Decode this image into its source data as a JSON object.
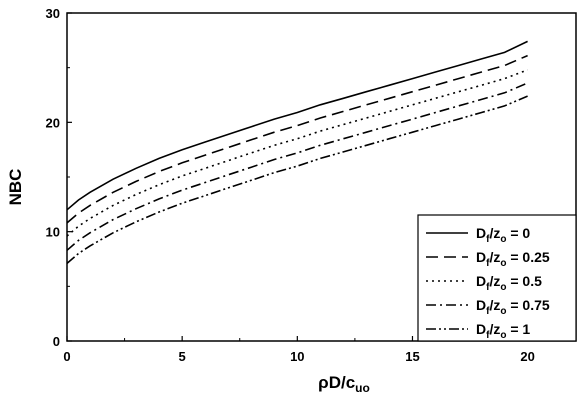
{
  "chart_data": {
    "type": "line",
    "xlabel": "ρD/c",
    "xlabel_sub": "uo",
    "ylabel": "NBC",
    "xlim": [
      0,
      22.1
    ],
    "ylim": [
      0,
      30
    ],
    "xticks": [
      0,
      5,
      10,
      15,
      20
    ],
    "yticks": [
      0,
      10,
      20,
      30
    ],
    "xtick_labels": [
      "0",
      "5",
      "10",
      "15",
      "20"
    ],
    "ytick_labels": [
      "0",
      "10",
      "20",
      "30"
    ],
    "legend_position": "bottom-right",
    "series": [
      {
        "name": "Df/zo = 0",
        "legend": {
          "main": "D",
          "sub1": "f",
          "mid": "/z",
          "sub2": "o",
          "tail": " = 0"
        },
        "dash": "",
        "x": [
          0,
          0.5,
          1,
          2,
          3,
          4,
          5,
          6,
          7,
          8,
          9,
          10,
          11,
          12,
          13,
          14,
          15,
          16,
          17,
          18,
          19,
          20
        ],
        "y": [
          12.0,
          12.9,
          13.6,
          14.8,
          15.8,
          16.7,
          17.5,
          18.2,
          18.9,
          19.6,
          20.3,
          20.9,
          21.6,
          22.2,
          22.8,
          23.4,
          24.0,
          24.6,
          25.2,
          25.8,
          26.4,
          27.4
        ]
      },
      {
        "name": "Df/zo = 0.25",
        "legend": {
          "main": "D",
          "sub1": "f",
          "mid": "/z",
          "sub2": "o",
          "tail": " = 0.25"
        },
        "dash": "12,6",
        "x": [
          0,
          0.5,
          1,
          2,
          3,
          4,
          5,
          6,
          7,
          8,
          9,
          10,
          11,
          12,
          13,
          14,
          15,
          16,
          17,
          18,
          19,
          20
        ],
        "y": [
          10.8,
          11.7,
          12.4,
          13.6,
          14.6,
          15.5,
          16.3,
          17.0,
          17.7,
          18.4,
          19.1,
          19.7,
          20.4,
          21.0,
          21.6,
          22.2,
          22.8,
          23.4,
          24.0,
          24.6,
          25.2,
          26.1
        ]
      },
      {
        "name": "Df/zo = 0.5",
        "legend": {
          "main": "D",
          "sub1": "f",
          "mid": "/z",
          "sub2": "o",
          "tail": " = 0.5"
        },
        "dash": "2,4",
        "x": [
          0,
          0.5,
          1,
          2,
          3,
          4,
          5,
          6,
          7,
          8,
          9,
          10,
          11,
          12,
          13,
          14,
          15,
          16,
          17,
          18,
          19,
          20
        ],
        "y": [
          9.6,
          10.5,
          11.2,
          12.4,
          13.4,
          14.3,
          15.1,
          15.8,
          16.5,
          17.2,
          17.9,
          18.5,
          19.2,
          19.8,
          20.4,
          21.0,
          21.6,
          22.2,
          22.8,
          23.4,
          24.0,
          24.8
        ]
      },
      {
        "name": "Df/zo = 0.75",
        "legend": {
          "main": "D",
          "sub1": "f",
          "mid": "/z",
          "sub2": "o",
          "tail": " = 0.75"
        },
        "dash": "10,4,2,4",
        "x": [
          0,
          0.5,
          1,
          2,
          3,
          4,
          5,
          6,
          7,
          8,
          9,
          10,
          11,
          12,
          13,
          14,
          15,
          16,
          17,
          18,
          19,
          20
        ],
        "y": [
          8.3,
          9.2,
          9.9,
          11.1,
          12.1,
          13.0,
          13.8,
          14.5,
          15.2,
          15.9,
          16.6,
          17.2,
          17.9,
          18.5,
          19.1,
          19.7,
          20.3,
          20.9,
          21.5,
          22.1,
          22.7,
          23.6
        ]
      },
      {
        "name": "Df/zo = 1",
        "legend": {
          "main": "D",
          "sub1": "f",
          "mid": "/z",
          "sub2": "o",
          "tail": " = 1"
        },
        "dash": "10,3,2,3,2,3",
        "x": [
          0,
          0.5,
          1,
          2,
          3,
          4,
          5,
          6,
          7,
          8,
          9,
          10,
          11,
          12,
          13,
          14,
          15,
          16,
          17,
          18,
          19,
          20
        ],
        "y": [
          7.1,
          8.0,
          8.7,
          9.9,
          10.9,
          11.8,
          12.6,
          13.3,
          14.0,
          14.7,
          15.4,
          16.0,
          16.7,
          17.3,
          17.9,
          18.5,
          19.1,
          19.7,
          20.3,
          20.9,
          21.5,
          22.4
        ]
      }
    ]
  }
}
